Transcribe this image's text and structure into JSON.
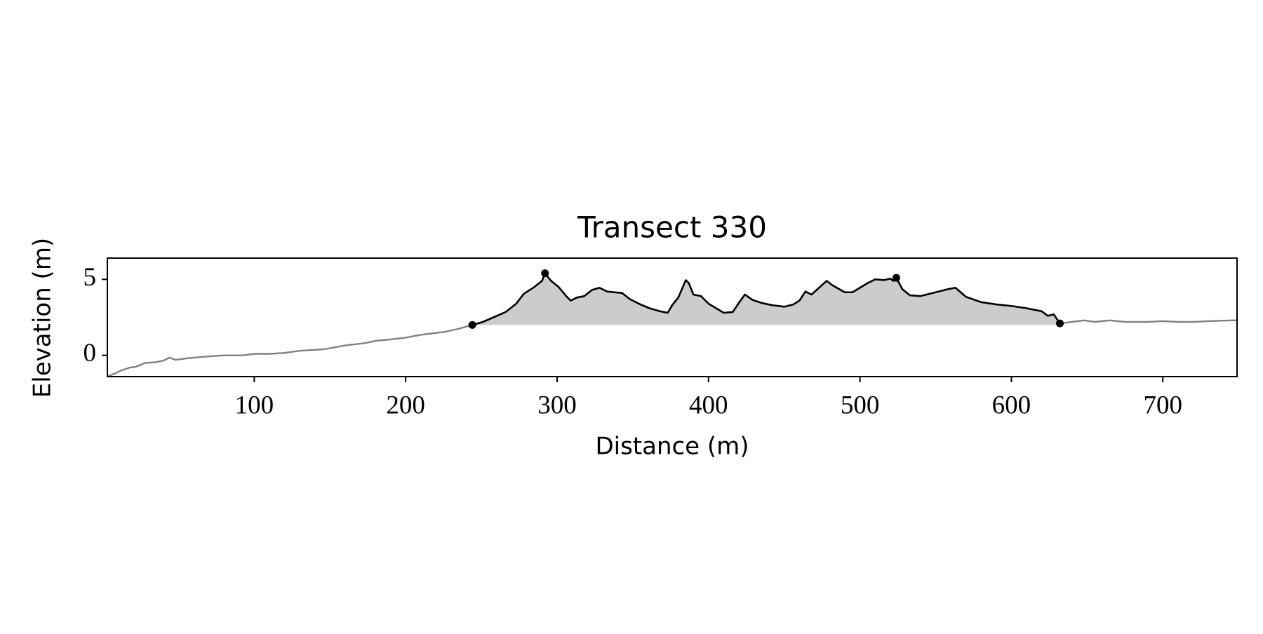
{
  "chart_data": {
    "type": "line",
    "title": "Transect 330",
    "x_label": "Distance (m)",
    "y_label": "Elevation (m)",
    "xlim": [
      3,
      749
    ],
    "ylim": [
      -1.4,
      6.4
    ],
    "xticks": [
      100,
      200,
      300,
      400,
      500,
      600,
      700
    ],
    "yticks": [
      0,
      5
    ],
    "grid": false,
    "series": [
      {
        "color": "#808080",
        "x": [
          3,
          8,
          12,
          18,
          22,
          28,
          35,
          40,
          44,
          48,
          55,
          66,
          80,
          93,
          100,
          110,
          119,
          130,
          146,
          160,
          173,
          180,
          190,
          199,
          210,
          226,
          235,
          244
        ],
        "values": [
          -1.38,
          -1.2,
          -1.0,
          -0.8,
          -0.75,
          -0.5,
          -0.45,
          -0.35,
          -0.15,
          -0.3,
          -0.2,
          -0.1,
          0.0,
          0.0,
          0.1,
          0.1,
          0.15,
          0.3,
          0.4,
          0.65,
          0.8,
          0.95,
          1.05,
          1.15,
          1.35,
          1.55,
          1.75,
          2.0
        ]
      },
      {
        "color": "#000000",
        "fill": "#cccccc",
        "x": [
          244,
          251,
          258,
          266,
          273,
          278,
          285,
          290,
          292,
          296,
          301,
          306,
          309,
          313,
          318,
          323,
          328,
          333,
          338,
          343,
          348,
          355,
          361,
          368,
          373,
          376,
          380,
          385,
          387,
          390,
          395,
          400,
          405,
          410,
          416,
          420,
          424,
          429,
          435,
          442,
          450,
          456,
          460,
          464,
          468,
          473,
          478,
          482,
          490,
          495,
          500,
          505,
          510,
          516,
          520,
          522,
          524,
          528,
          533,
          540,
          550,
          558,
          563,
          570,
          580,
          590,
          600,
          610,
          620,
          624,
          628,
          632
        ],
        "values": [
          2.0,
          2.2,
          2.5,
          2.85,
          3.4,
          4.05,
          4.5,
          4.9,
          5.4,
          4.9,
          4.5,
          3.9,
          3.6,
          3.8,
          3.9,
          4.3,
          4.45,
          4.2,
          4.15,
          4.1,
          3.7,
          3.35,
          3.1,
          2.9,
          2.8,
          3.3,
          3.8,
          4.95,
          4.75,
          4.0,
          3.9,
          3.4,
          3.1,
          2.8,
          2.85,
          3.45,
          4.0,
          3.65,
          3.45,
          3.3,
          3.2,
          3.35,
          3.6,
          4.2,
          4.0,
          4.45,
          4.9,
          4.6,
          4.15,
          4.15,
          4.45,
          4.75,
          5.0,
          4.95,
          5.05,
          4.9,
          5.1,
          4.35,
          3.95,
          3.9,
          4.15,
          4.35,
          4.45,
          3.85,
          3.5,
          3.35,
          3.25,
          3.1,
          2.9,
          2.6,
          2.7,
          2.1
        ]
      },
      {
        "color": "#808080",
        "x": [
          632,
          640,
          648,
          655,
          665,
          675,
          690,
          700,
          710,
          720,
          730,
          745,
          749
        ],
        "values": [
          2.1,
          2.2,
          2.3,
          2.2,
          2.3,
          2.2,
          2.2,
          2.25,
          2.2,
          2.2,
          2.25,
          2.3,
          2.3
        ]
      }
    ],
    "points": {
      "color": "#000000",
      "x": [
        244,
        292,
        524,
        632
      ],
      "values": [
        2.0,
        5.4,
        5.1,
        2.1
      ]
    }
  }
}
